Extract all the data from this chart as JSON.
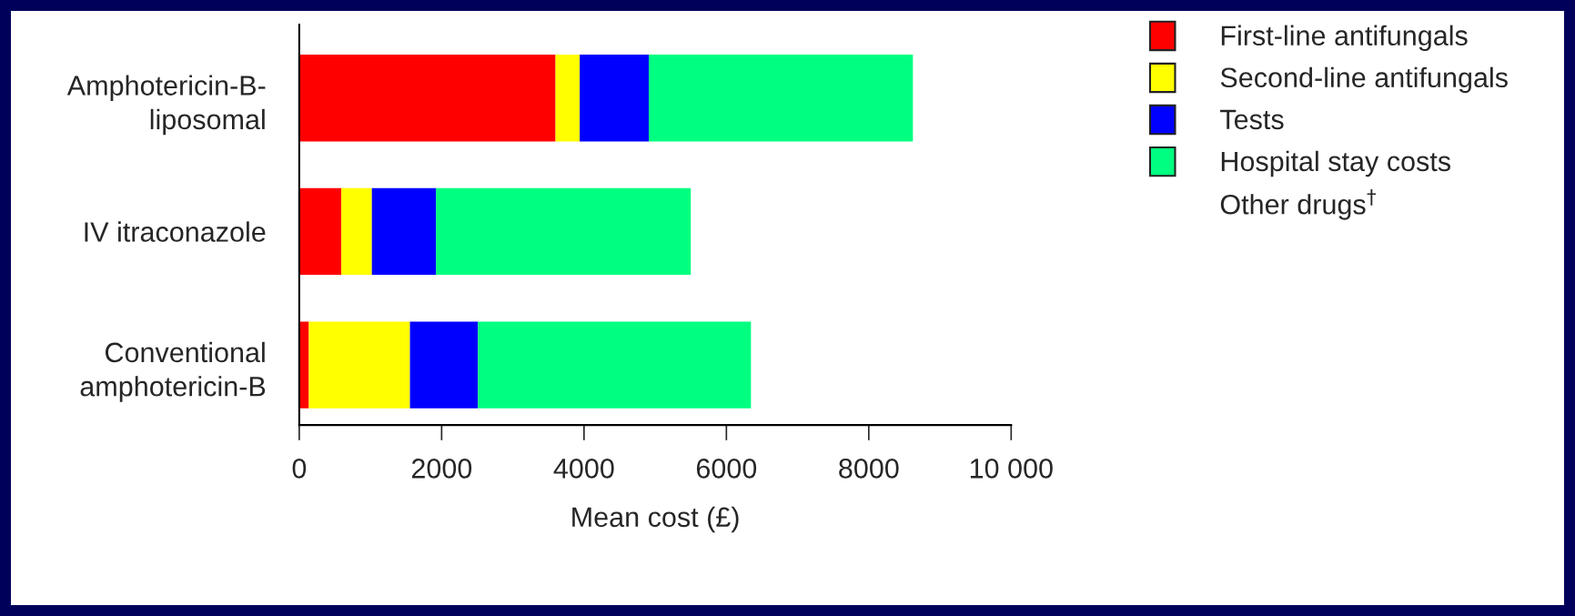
{
  "chart_data": {
    "type": "bar",
    "orientation": "horizontal",
    "stacked": true,
    "categories": [
      "Amphotericin-B-\nliposomal",
      "IV itraconazole",
      "Conventional\namphotericin-B"
    ],
    "series": [
      {
        "name": "First-line antifungals",
        "color": "#ff0000",
        "values": [
          3600,
          590,
          135
        ]
      },
      {
        "name": "Second-line antifungals",
        "color": "#ffff00",
        "values": [
          340,
          430,
          1420
        ]
      },
      {
        "name": "Tests",
        "color": "#0000ff",
        "values": [
          970,
          900,
          955
        ]
      },
      {
        "name": "Hospital stay costs",
        "color": "#00ff80",
        "values": [
          3710,
          3580,
          3835
        ]
      },
      {
        "name": "Other drugs$^{†}$",
        "values": [
          null,
          null,
          null
        ]
      }
    ],
    "xlabel": "Mean cost (£)",
    "xlim": [
      0,
      10000
    ],
    "xticks": [
      0,
      2000,
      4000,
      6000,
      8000,
      {
        "value": 10000,
        "label": "10 000"
      }
    ],
    "legend": "right",
    "grid": false
  }
}
